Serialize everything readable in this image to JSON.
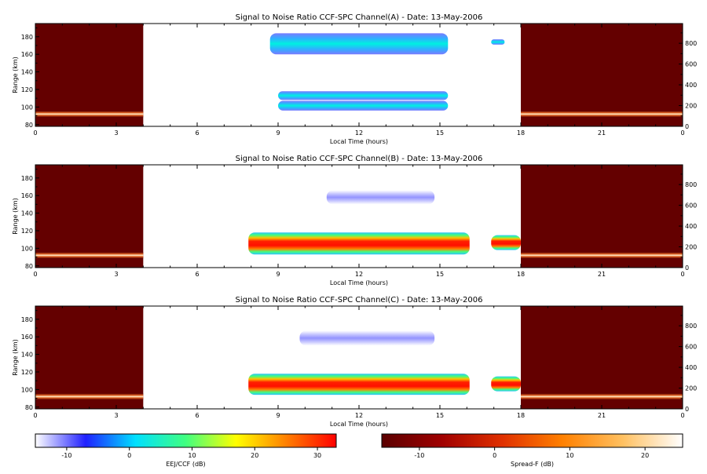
{
  "chart_data": [
    {
      "type": "heatmap",
      "title": "Signal to Noise Ratio CCF-SPC Channel(A) - Date: 13-May-2006",
      "xlabel": "Local Time (hours)",
      "ylabel": "Range (km)",
      "xlim": [
        0,
        24
      ],
      "ylim": [
        78,
        195
      ],
      "xticks": [
        "0",
        "3",
        "6",
        "9",
        "12",
        "15",
        "18",
        "21",
        "0"
      ],
      "yticks": [
        "80",
        "100",
        "120",
        "140",
        "160",
        "180"
      ],
      "y2lim": [
        0,
        990
      ],
      "y2ticks": [
        "0",
        "200",
        "400",
        "600",
        "800"
      ],
      "spreadf_windows": [
        {
          "x0": 0,
          "x1": 4
        },
        {
          "x0": 18,
          "x1": 24
        }
      ],
      "spreadf_trace_range_km": 92,
      "echo_regions": [
        {
          "x0": 8.7,
          "x1": 15.3,
          "y0": 160,
          "y1": 184,
          "level": "low"
        },
        {
          "x0": 16.9,
          "x1": 17.4,
          "y0": 171,
          "y1": 177,
          "level": "low"
        },
        {
          "x0": 9.0,
          "x1": 15.3,
          "y0": 108,
          "y1": 118,
          "level": "low"
        },
        {
          "x0": 9.0,
          "x1": 15.3,
          "y0": 96,
          "y1": 107,
          "level": "low"
        }
      ]
    },
    {
      "type": "heatmap",
      "title": "Signal to Noise Ratio CCF-SPC Channel(B) - Date: 13-May-2006",
      "xlabel": "Local Time (hours)",
      "ylabel": "Range (km)",
      "xlim": [
        0,
        24
      ],
      "ylim": [
        78,
        195
      ],
      "xticks": [
        "0",
        "3",
        "6",
        "9",
        "12",
        "15",
        "18",
        "21",
        "0"
      ],
      "yticks": [
        "80",
        "100",
        "120",
        "140",
        "160",
        "180"
      ],
      "y2lim": [
        0,
        990
      ],
      "y2ticks": [
        "0",
        "200",
        "400",
        "600",
        "800"
      ],
      "spreadf_windows": [
        {
          "x0": 0,
          "x1": 4
        },
        {
          "x0": 18,
          "x1": 24
        }
      ],
      "spreadf_trace_range_km": 92,
      "echo_regions": [
        {
          "x0": 10.8,
          "x1": 14.8,
          "y0": 150,
          "y1": 166,
          "level": "faint"
        },
        {
          "x0": 7.9,
          "x1": 16.1,
          "y0": 93,
          "y1": 118,
          "level": "high"
        },
        {
          "x0": 16.9,
          "x1": 18.0,
          "y0": 98,
          "y1": 115,
          "level": "high"
        }
      ]
    },
    {
      "type": "heatmap",
      "title": "Signal to Noise Ratio CCF-SPC Channel(C) - Date: 13-May-2006",
      "xlabel": "Local Time (hours)",
      "ylabel": "Range (km)",
      "xlim": [
        0,
        24
      ],
      "ylim": [
        78,
        195
      ],
      "xticks": [
        "0",
        "3",
        "6",
        "9",
        "12",
        "15",
        "18",
        "21",
        "0"
      ],
      "yticks": [
        "80",
        "100",
        "120",
        "140",
        "160",
        "180"
      ],
      "y2lim": [
        0,
        990
      ],
      "y2ticks": [
        "0",
        "200",
        "400",
        "600",
        "800"
      ],
      "spreadf_windows": [
        {
          "x0": 0,
          "x1": 4
        },
        {
          "x0": 18,
          "x1": 24
        }
      ],
      "spreadf_trace_range_km": 92,
      "echo_regions": [
        {
          "x0": 9.8,
          "x1": 14.8,
          "y0": 150,
          "y1": 167,
          "level": "faint"
        },
        {
          "x0": 7.9,
          "x1": 16.1,
          "y0": 94,
          "y1": 118,
          "level": "high"
        },
        {
          "x0": 16.9,
          "x1": 18.0,
          "y0": 98,
          "y1": 115,
          "level": "high"
        }
      ]
    }
  ],
  "colorbars": [
    {
      "label": "EEJ/CCF (dB)",
      "range": [
        -15,
        33
      ],
      "ticks": [
        "-10",
        "0",
        "10",
        "20",
        "30"
      ],
      "colors": [
        "#ffffff",
        "#2020ff",
        "#00e0ff",
        "#40ff80",
        "#ffff00",
        "#ff8000",
        "#ff0000"
      ]
    },
    {
      "label": "Spread-F (dB)",
      "range": [
        -15,
        25
      ],
      "ticks": [
        "-10",
        "0",
        "10",
        "20"
      ],
      "colors": [
        "#5a0000",
        "#a00000",
        "#e03000",
        "#ff8000",
        "#ffc060",
        "#ffffff"
      ]
    }
  ]
}
